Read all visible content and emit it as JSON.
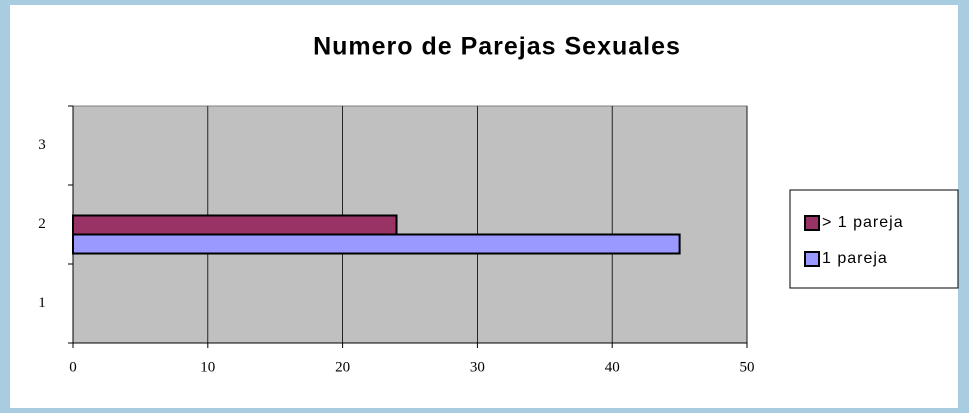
{
  "chart_data": {
    "type": "hbar",
    "title": "Numero de Parejas Sexuales",
    "categories": [
      "1",
      "2",
      "3"
    ],
    "series": [
      {
        "name": "> 1 pareja",
        "color": "#993366",
        "values": [
          null,
          24,
          null
        ]
      },
      {
        "name": "1 pareja",
        "color": "#9999ff",
        "values": [
          null,
          45,
          null
        ]
      }
    ],
    "xlim": [
      0,
      50
    ],
    "xticks": [
      0,
      10,
      20,
      30,
      40,
      50
    ],
    "grid": true,
    "legend": "right"
  }
}
